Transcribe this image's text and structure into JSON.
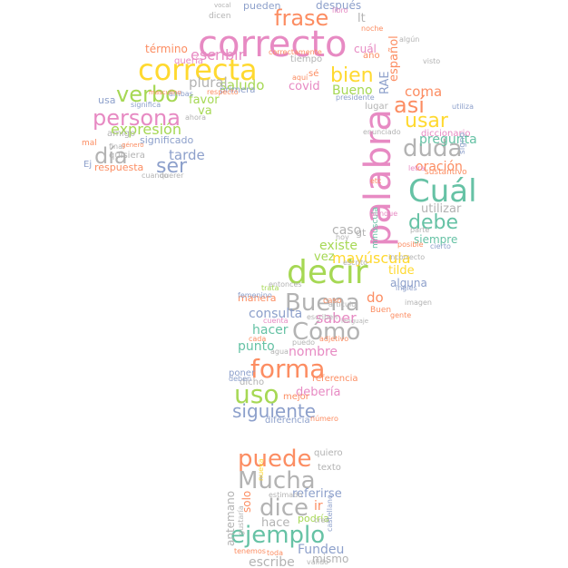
{
  "words": [
    {
      "text": "correcto",
      "color": "#e78ac3"
    },
    {
      "text": "correcta",
      "color": "#ffd92f"
    },
    {
      "text": "palabra",
      "color": "#e78ac3"
    },
    {
      "text": "decir",
      "color": "#a6d854"
    },
    {
      "text": "Cuál",
      "color": "#66c2a5"
    },
    {
      "text": "frase",
      "color": "#fc8d62"
    },
    {
      "text": "verbo",
      "color": "#a6d854"
    },
    {
      "text": "persona",
      "color": "#e78ac3"
    },
    {
      "text": "duda",
      "color": "#b3b3b3"
    },
    {
      "text": "día",
      "color": "#b3b3b3"
    },
    {
      "text": "ser",
      "color": "#8da0cb"
    },
    {
      "text": "así",
      "color": "#fc8d62"
    },
    {
      "text": "bien",
      "color": "#ffd92f"
    },
    {
      "text": "usar",
      "color": "#ffd92f"
    },
    {
      "text": "debe",
      "color": "#66c2a5"
    },
    {
      "text": "forma",
      "color": "#fc8d62"
    },
    {
      "text": "uso",
      "color": "#a6d854"
    },
    {
      "text": "Buena",
      "color": "#b3b3b3"
    },
    {
      "text": "Cómo",
      "color": "#b3b3b3"
    },
    {
      "text": "siguiente",
      "color": "#8da0cb"
    },
    {
      "text": "puede",
      "color": "#fc8d62"
    },
    {
      "text": "Mucha",
      "color": "#b3b3b3"
    },
    {
      "text": "dice",
      "color": "#b3b3b3"
    },
    {
      "text": "ejemplo",
      "color": "#66c2a5"
    },
    {
      "text": "expresión",
      "color": "#a6d854"
    },
    {
      "text": "mayúscula",
      "color": "#ffd92f"
    },
    {
      "text": "oración",
      "color": "#fc8d62"
    },
    {
      "text": "escribir",
      "color": "#e78ac3"
    },
    {
      "text": "saludo",
      "color": "#a6d854"
    },
    {
      "text": "plural",
      "color": "#b3b3b3"
    },
    {
      "text": "tarde",
      "color": "#8da0cb"
    },
    {
      "text": "covid",
      "color": "#e78ac3"
    },
    {
      "text": "Bueno",
      "color": "#a6d854"
    },
    {
      "text": "coma",
      "color": "#fc8d62"
    },
    {
      "text": "pregunta",
      "color": "#66c2a5"
    },
    {
      "text": "utilizar",
      "color": "#b3b3b3"
    },
    {
      "text": "existe",
      "color": "#a6d854"
    },
    {
      "text": "caso",
      "color": "#b3b3b3"
    },
    {
      "text": "vez",
      "color": "#a6d854"
    },
    {
      "text": "tilde",
      "color": "#ffd92f"
    },
    {
      "text": "alguna",
      "color": "#8da0cb"
    },
    {
      "text": "saber",
      "color": "#e78ac3"
    },
    {
      "text": "consulta",
      "color": "#8da0cb"
    },
    {
      "text": "do",
      "color": "#fc8d62"
    },
    {
      "text": "hacer",
      "color": "#66c2a5"
    },
    {
      "text": "punto",
      "color": "#66c2a5"
    },
    {
      "text": "nombre",
      "color": "#e78ac3"
    },
    {
      "text": "debería",
      "color": "#e78ac3"
    },
    {
      "text": "referirse",
      "color": "#8da0cb"
    },
    {
      "text": "ir",
      "color": "#fc8d62"
    },
    {
      "text": "hace",
      "color": "#b3b3b3"
    },
    {
      "text": "podría",
      "color": "#a6d854"
    },
    {
      "text": "Fundeu",
      "color": "#8da0cb"
    },
    {
      "text": "escribe",
      "color": "#b3b3b3"
    },
    {
      "text": "mismo",
      "color": "#b3b3b3"
    },
    {
      "text": "solo",
      "color": "#fc8d62"
    },
    {
      "text": "antemano",
      "color": "#b3b3b3"
    },
    {
      "text": "quiero",
      "color": "#b3b3b3"
    },
    {
      "text": "texto",
      "color": "#b3b3b3"
    },
    {
      "text": "respuesta",
      "color": "#fc8d62"
    },
    {
      "text": "significado",
      "color": "#8da0cb"
    },
    {
      "text": "quisiera",
      "color": "#b3b3b3"
    },
    {
      "text": "término",
      "color": "#fc8d62"
    },
    {
      "text": "quería",
      "color": "#e78ac3"
    },
    {
      "text": "favor",
      "color": "#a6d854"
    },
    {
      "text": "va",
      "color": "#a6d854"
    },
    {
      "text": "primera",
      "color": "#8da0cb"
    },
    {
      "text": "usa",
      "color": "#8da0cb"
    },
    {
      "text": "amigo",
      "color": "#b3b3b3"
    },
    {
      "text": "Ej",
      "color": "#8da0cb"
    },
    {
      "text": "diccionario",
      "color": "#e78ac3"
    },
    {
      "text": "sustantivo",
      "color": "#fc8d62"
    },
    {
      "text": "siempre",
      "color": "#66c2a5"
    },
    {
      "text": "lugar",
      "color": "#b3b3b3"
    },
    {
      "text": "gt",
      "color": "#b3b3b3"
    },
    {
      "text": "lt",
      "color": "#b3b3b3"
    },
    {
      "text": "año",
      "color": "#fc8d62"
    },
    {
      "text": "español",
      "color": "#fc8d62"
    },
    {
      "text": "RAE",
      "color": "#8da0cb"
    },
    {
      "text": "tiempo",
      "color": "#b3b3b3"
    },
    {
      "text": "sé",
      "color": "#fc8d62"
    },
    {
      "text": "presidente",
      "color": "#8da0cb"
    },
    {
      "text": "signo",
      "color": "#8da0cb"
    },
    {
      "text": "minúscula",
      "color": "#66c2a5"
    },
    {
      "text": "manera",
      "color": "#fc8d62"
    },
    {
      "text": "poner",
      "color": "#8da0cb"
    },
    {
      "text": "dicho",
      "color": "#b3b3b3"
    },
    {
      "text": "diferencia",
      "color": "#8da0cb"
    },
    {
      "text": "referencia",
      "color": "#fc8d62"
    },
    {
      "text": "mejor",
      "color": "#fc8d62"
    },
    {
      "text": "cuál",
      "color": "#e78ac3"
    },
    {
      "text": "después",
      "color": "#8da0cb"
    },
    {
      "text": "pueden",
      "color": "#8da0cb"
    },
    {
      "text": "dicen",
      "color": "#b3b3b3"
    },
    {
      "text": "libro",
      "color": "#e78ac3"
    },
    {
      "text": "noche",
      "color": "#fc8d62"
    },
    {
      "text": "Buen",
      "color": "#fc8d62"
    },
    {
      "text": "número",
      "color": "#fc8d62"
    },
    {
      "text": "visto",
      "color": "#b3b3b3"
    },
    {
      "text": "algún",
      "color": "#b3b3b3"
    },
    {
      "text": "caso",
      "color": "#fc8d62"
    },
    {
      "text": "cuando",
      "color": "#b3b3b3"
    },
    {
      "text": "querer",
      "color": "#b3b3b3"
    },
    {
      "text": "mal",
      "color": "#fc8d62"
    },
    {
      "text": "final",
      "color": "#b3b3b3"
    },
    {
      "text": "ahora",
      "color": "#b3b3b3"
    },
    {
      "text": "significa",
      "color": "#8da0cb"
    },
    {
      "text": "ambas",
      "color": "#8da0cb"
    },
    {
      "text": "respecto",
      "color": "#fc8d62"
    },
    {
      "text": "aquí",
      "color": "#fc8d62"
    },
    {
      "text": "letra",
      "color": "#e78ac3"
    },
    {
      "text": "enunciado",
      "color": "#b3b3b3"
    },
    {
      "text": "utiliza",
      "color": "#8da0cb"
    },
    {
      "text": "etc",
      "color": "#fc8d62"
    },
    {
      "text": "aunque",
      "color": "#e78ac3"
    },
    {
      "text": "hoy",
      "color": "#b3b3b3"
    },
    {
      "text": "escrito",
      "color": "#b3b3b3"
    },
    {
      "text": "posible",
      "color": "#fc8d62"
    },
    {
      "text": "cierto",
      "color": "#8da0cb"
    },
    {
      "text": "incorrecto",
      "color": "#b3b3b3"
    },
    {
      "text": "inglés",
      "color": "#8da0cb"
    },
    {
      "text": "gente",
      "color": "#fc8d62"
    },
    {
      "text": "imagen",
      "color": "#b3b3b3"
    },
    {
      "text": "artículo",
      "color": "#b3b3b3"
    },
    {
      "text": "escriben",
      "color": "#b3b3b3"
    },
    {
      "text": "entonces",
      "color": "#b3b3b3"
    },
    {
      "text": "trata",
      "color": "#a6d854"
    },
    {
      "text": "cuenta",
      "color": "#e78ac3"
    },
    {
      "text": "agua",
      "color": "#b3b3b3"
    },
    {
      "text": "puedo",
      "color": "#b3b3b3"
    },
    {
      "text": "adjetivo",
      "color": "#fc8d62"
    },
    {
      "text": "deben",
      "color": "#8da0cb"
    },
    {
      "text": "cada",
      "color": "#fc8d62"
    },
    {
      "text": "estimado",
      "color": "#b3b3b3"
    },
    {
      "text": "nueva",
      "color": "#ffd92f"
    },
    {
      "text": "gustaría",
      "color": "#b3b3b3"
    },
    {
      "text": "creo",
      "color": "#b3b3b3"
    },
    {
      "text": "castellano",
      "color": "#8da0cb"
    },
    {
      "text": "válido",
      "color": "#b3b3b3"
    },
    {
      "text": "tenemos",
      "color": "#fc8d62"
    },
    {
      "text": "toda",
      "color": "#fc8d62"
    },
    {
      "text": "femenino",
      "color": "#8da0cb"
    },
    {
      "text": "correctamente",
      "color": "#fc8d62"
    },
    {
      "text": "vocal",
      "color": "#b3b3b3"
    },
    {
      "text": "parte",
      "color": "#b3b3b3"
    },
    {
      "text": "género",
      "color": "#fc8d62"
    },
    {
      "text": "masculino",
      "color": "#fc8d62"
    },
    {
      "text": "lenguaje",
      "color": "#b3b3b3"
    }
  ]
}
